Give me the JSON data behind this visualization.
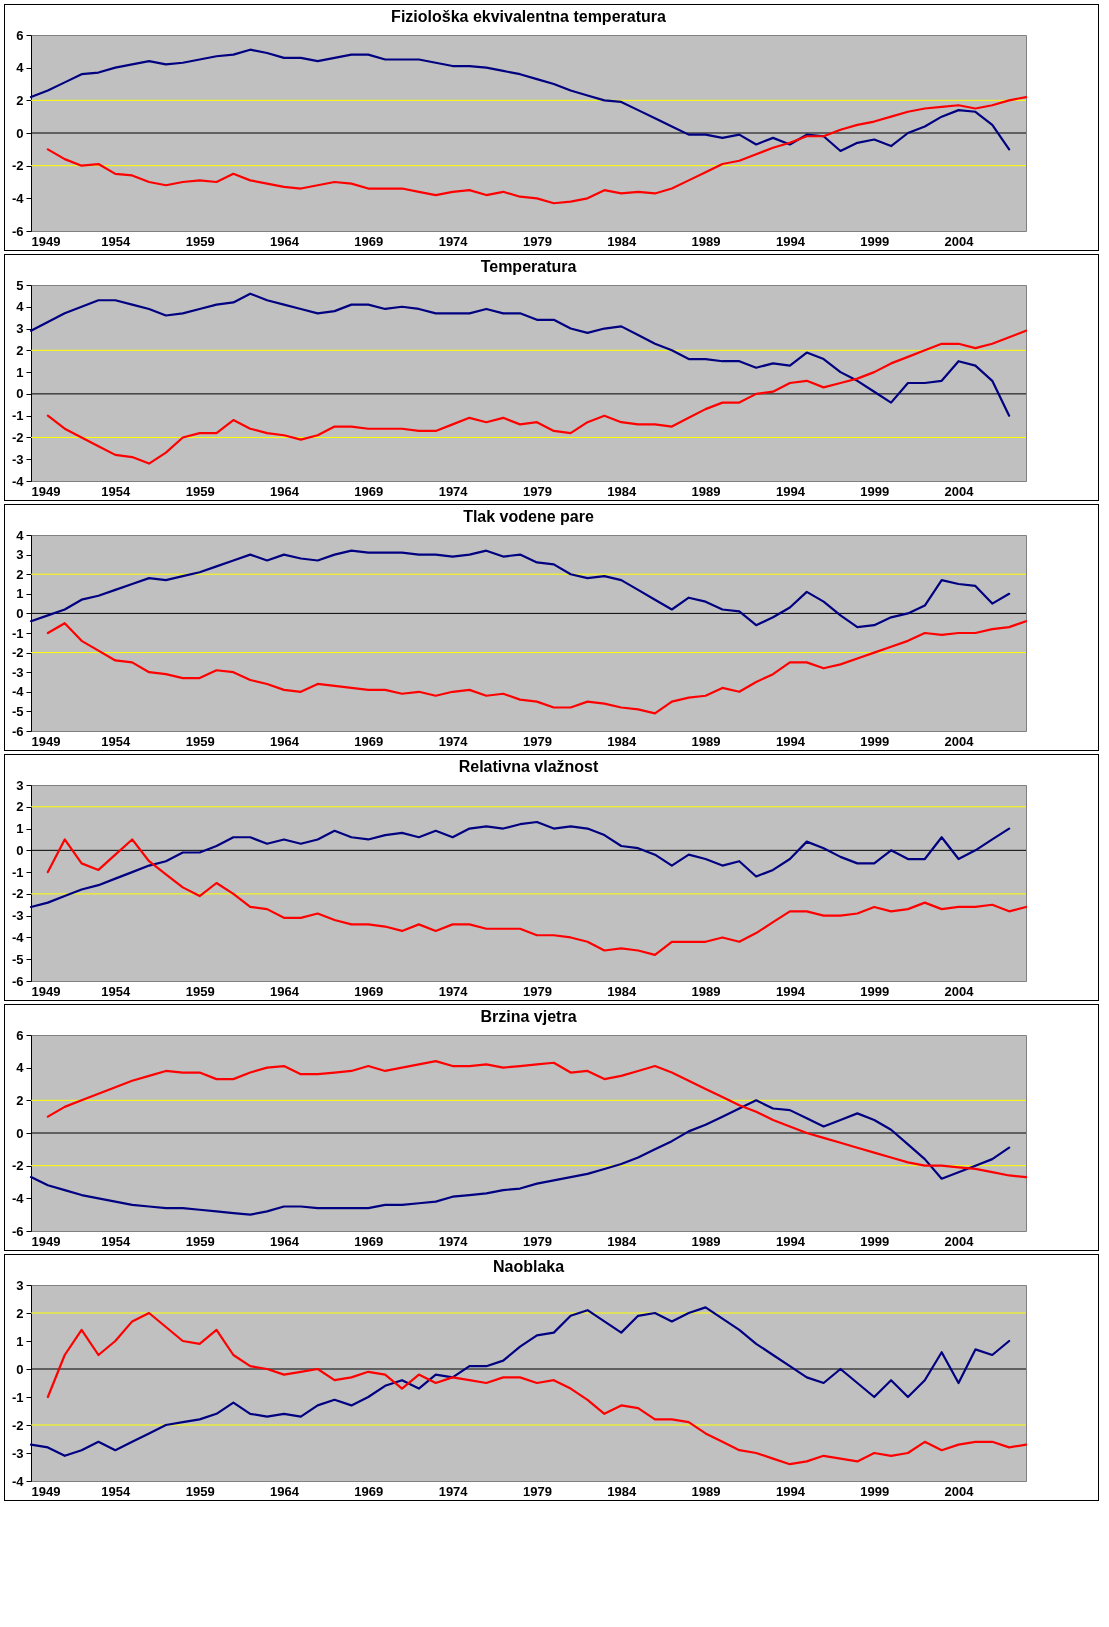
{
  "chart_data": [
    {
      "type": "line",
      "title": "Fiziološka ekvivalentna temperatura",
      "x": [
        1949,
        1950,
        1951,
        1952,
        1953,
        1954,
        1955,
        1956,
        1957,
        1958,
        1959,
        1960,
        1961,
        1962,
        1963,
        1964,
        1965,
        1966,
        1967,
        1968,
        1969,
        1970,
        1971,
        1972,
        1973,
        1974,
        1975,
        1976,
        1977,
        1978,
        1979,
        1980,
        1981,
        1982,
        1983,
        1984,
        1985,
        1986,
        1987,
        1988,
        1989,
        1990,
        1991,
        1992,
        1993,
        1994,
        1995,
        1996,
        1997,
        1998,
        1999,
        2000,
        2001,
        2002,
        2003,
        2004,
        2005,
        2006,
        2007,
        2008
      ],
      "xlim": [
        1949,
        2008
      ],
      "xticks": [
        1949,
        1954,
        1959,
        1964,
        1969,
        1974,
        1979,
        1984,
        1989,
        1994,
        1999,
        2004
      ],
      "ylim": [
        -6,
        6
      ],
      "yticks": [
        -6,
        -4,
        -2,
        0,
        2,
        4,
        6
      ],
      "ref_lines": [
        {
          "axis": "y",
          "value": 2,
          "color": "#ffff00"
        },
        {
          "axis": "y",
          "value": -2,
          "color": "#ffff00"
        },
        {
          "axis": "y",
          "value": 0,
          "color": "#000000"
        }
      ],
      "series": [
        {
          "color": "#000080",
          "values": [
            2.2,
            2.6,
            3.1,
            3.6,
            3.7,
            4.0,
            4.2,
            4.4,
            4.2,
            4.3,
            4.5,
            4.7,
            4.8,
            5.1,
            4.9,
            4.6,
            4.6,
            4.4,
            4.6,
            4.8,
            4.8,
            4.5,
            4.5,
            4.5,
            4.3,
            4.1,
            4.1,
            4.0,
            3.8,
            3.6,
            3.3,
            3.0,
            2.6,
            2.3,
            2.0,
            1.9,
            1.4,
            0.9,
            0.4,
            -0.1,
            -0.1,
            -0.3,
            -0.1,
            -0.7,
            -0.3,
            -0.7,
            -0.1,
            -0.2,
            -1.1,
            -0.6,
            -0.4,
            -0.8,
            0.0,
            0.4,
            1.0,
            1.4,
            1.3,
            0.5,
            -1.0,
            null
          ]
        },
        {
          "color": "#ff0000",
          "values": [
            null,
            -1.0,
            -1.6,
            -2.0,
            -1.9,
            -2.5,
            -2.6,
            -3.0,
            -3.2,
            -3.0,
            -2.9,
            -3.0,
            -2.5,
            -2.9,
            -3.1,
            -3.3,
            -3.4,
            -3.2,
            -3.0,
            -3.1,
            -3.4,
            -3.4,
            -3.4,
            -3.6,
            -3.8,
            -3.6,
            -3.5,
            -3.8,
            -3.6,
            -3.9,
            -4.0,
            -4.3,
            -4.2,
            -4.0,
            -3.5,
            -3.7,
            -3.6,
            -3.7,
            -3.4,
            -2.9,
            -2.4,
            -1.9,
            -1.7,
            -1.3,
            -0.9,
            -0.6,
            -0.2,
            -0.2,
            0.2,
            0.5,
            0.7,
            1.0,
            1.3,
            1.5,
            1.6,
            1.7,
            1.5,
            1.7,
            2.0,
            2.2
          ]
        }
      ]
    },
    {
      "type": "line",
      "title": "Temperatura",
      "x": [
        1949,
        1950,
        1951,
        1952,
        1953,
        1954,
        1955,
        1956,
        1957,
        1958,
        1959,
        1960,
        1961,
        1962,
        1963,
        1964,
        1965,
        1966,
        1967,
        1968,
        1969,
        1970,
        1971,
        1972,
        1973,
        1974,
        1975,
        1976,
        1977,
        1978,
        1979,
        1980,
        1981,
        1982,
        1983,
        1984,
        1985,
        1986,
        1987,
        1988,
        1989,
        1990,
        1991,
        1992,
        1993,
        1994,
        1995,
        1996,
        1997,
        1998,
        1999,
        2000,
        2001,
        2002,
        2003,
        2004,
        2005,
        2006,
        2007,
        2008
      ],
      "xlim": [
        1949,
        2008
      ],
      "xticks": [
        1949,
        1954,
        1959,
        1964,
        1969,
        1974,
        1979,
        1984,
        1989,
        1994,
        1999,
        2004
      ],
      "ylim": [
        -4,
        5
      ],
      "yticks": [
        -4,
        -3,
        -2,
        -1,
        0,
        1,
        2,
        3,
        4,
        5
      ],
      "ref_lines": [
        {
          "axis": "y",
          "value": 2,
          "color": "#ffff00"
        },
        {
          "axis": "y",
          "value": -2,
          "color": "#ffff00"
        },
        {
          "axis": "y",
          "value": 0,
          "color": "#000000"
        }
      ],
      "series": [
        {
          "color": "#000080",
          "values": [
            2.9,
            3.3,
            3.7,
            4.0,
            4.3,
            4.3,
            4.1,
            3.9,
            3.6,
            3.7,
            3.9,
            4.1,
            4.2,
            4.6,
            4.3,
            4.1,
            3.9,
            3.7,
            3.8,
            4.1,
            4.1,
            3.9,
            4.0,
            3.9,
            3.7,
            3.7,
            3.7,
            3.9,
            3.7,
            3.7,
            3.4,
            3.4,
            3.0,
            2.8,
            3.0,
            3.1,
            2.7,
            2.3,
            2.0,
            1.6,
            1.6,
            1.5,
            1.5,
            1.2,
            1.4,
            1.3,
            1.9,
            1.6,
            1.0,
            0.6,
            0.1,
            -0.4,
            0.5,
            0.5,
            0.6,
            1.5,
            1.3,
            0.6,
            -1.0,
            null
          ]
        },
        {
          "color": "#ff0000",
          "values": [
            null,
            -1.0,
            -1.6,
            -2.0,
            -2.4,
            -2.8,
            -2.9,
            -3.2,
            -2.7,
            -2.0,
            -1.8,
            -1.8,
            -1.2,
            -1.6,
            -1.8,
            -1.9,
            -2.1,
            -1.9,
            -1.5,
            -1.5,
            -1.6,
            -1.6,
            -1.6,
            -1.7,
            -1.7,
            -1.4,
            -1.1,
            -1.3,
            -1.1,
            -1.4,
            -1.3,
            -1.7,
            -1.8,
            -1.3,
            -1.0,
            -1.3,
            -1.4,
            -1.4,
            -1.5,
            -1.1,
            -0.7,
            -0.4,
            -0.4,
            0.0,
            0.1,
            0.5,
            0.6,
            0.3,
            0.5,
            0.7,
            1.0,
            1.4,
            1.7,
            2.0,
            2.3,
            2.3,
            2.1,
            2.3,
            2.6,
            2.9
          ]
        }
      ]
    },
    {
      "type": "line",
      "title": "Tlak vodene pare",
      "x": [
        1949,
        1950,
        1951,
        1952,
        1953,
        1954,
        1955,
        1956,
        1957,
        1958,
        1959,
        1960,
        1961,
        1962,
        1963,
        1964,
        1965,
        1966,
        1967,
        1968,
        1969,
        1970,
        1971,
        1972,
        1973,
        1974,
        1975,
        1976,
        1977,
        1978,
        1979,
        1980,
        1981,
        1982,
        1983,
        1984,
        1985,
        1986,
        1987,
        1988,
        1989,
        1990,
        1991,
        1992,
        1993,
        1994,
        1995,
        1996,
        1997,
        1998,
        1999,
        2000,
        2001,
        2002,
        2003,
        2004,
        2005,
        2006,
        2007,
        2008
      ],
      "xlim": [
        1949,
        2008
      ],
      "xticks": [
        1949,
        1954,
        1959,
        1964,
        1969,
        1974,
        1979,
        1984,
        1989,
        1994,
        1999,
        2004
      ],
      "ylim": [
        -6,
        4
      ],
      "yticks": [
        -6,
        -5,
        -4,
        -3,
        -2,
        -1,
        0,
        1,
        2,
        3,
        4
      ],
      "ref_lines": [
        {
          "axis": "y",
          "value": 2,
          "color": "#ffff00"
        },
        {
          "axis": "y",
          "value": -2,
          "color": "#ffff00"
        },
        {
          "axis": "y",
          "value": 0,
          "color": "#000000"
        }
      ],
      "series": [
        {
          "color": "#000080",
          "values": [
            -0.4,
            -0.1,
            0.2,
            0.7,
            0.9,
            1.2,
            1.5,
            1.8,
            1.7,
            1.9,
            2.1,
            2.4,
            2.7,
            3.0,
            2.7,
            3.0,
            2.8,
            2.7,
            3.0,
            3.2,
            3.1,
            3.1,
            3.1,
            3.0,
            3.0,
            2.9,
            3.0,
            3.2,
            2.9,
            3.0,
            2.6,
            2.5,
            2.0,
            1.8,
            1.9,
            1.7,
            1.2,
            0.7,
            0.2,
            0.8,
            0.6,
            0.2,
            0.1,
            -0.6,
            -0.2,
            0.3,
            1.1,
            0.6,
            -0.1,
            -0.7,
            -0.6,
            -0.2,
            0.0,
            0.4,
            1.7,
            1.5,
            1.4,
            0.5,
            1.0,
            null
          ]
        },
        {
          "color": "#ff0000",
          "values": [
            null,
            -1.0,
            -0.5,
            -1.4,
            -1.9,
            -2.4,
            -2.5,
            -3.0,
            -3.1,
            -3.3,
            -3.3,
            -2.9,
            -3.0,
            -3.4,
            -3.6,
            -3.9,
            -4.0,
            -3.6,
            -3.7,
            -3.8,
            -3.9,
            -3.9,
            -4.1,
            -4.0,
            -4.2,
            -4.0,
            -3.9,
            -4.2,
            -4.1,
            -4.4,
            -4.5,
            -4.8,
            -4.8,
            -4.5,
            -4.6,
            -4.8,
            -4.9,
            -5.1,
            -4.5,
            -4.3,
            -4.2,
            -3.8,
            -4.0,
            -3.5,
            -3.1,
            -2.5,
            -2.5,
            -2.8,
            -2.6,
            -2.3,
            -2.0,
            -1.7,
            -1.4,
            -1.0,
            -1.1,
            -1.0,
            -1.0,
            -0.8,
            -0.7,
            -0.4
          ]
        }
      ]
    },
    {
      "type": "line",
      "title": "Relativna vlažnost",
      "x": [
        1949,
        1950,
        1951,
        1952,
        1953,
        1954,
        1955,
        1956,
        1957,
        1958,
        1959,
        1960,
        1961,
        1962,
        1963,
        1964,
        1965,
        1966,
        1967,
        1968,
        1969,
        1970,
        1971,
        1972,
        1973,
        1974,
        1975,
        1976,
        1977,
        1978,
        1979,
        1980,
        1981,
        1982,
        1983,
        1984,
        1985,
        1986,
        1987,
        1988,
        1989,
        1990,
        1991,
        1992,
        1993,
        1994,
        1995,
        1996,
        1997,
        1998,
        1999,
        2000,
        2001,
        2002,
        2003,
        2004,
        2005,
        2006,
        2007,
        2008
      ],
      "xlim": [
        1949,
        2008
      ],
      "xticks": [
        1949,
        1954,
        1959,
        1964,
        1969,
        1974,
        1979,
        1984,
        1989,
        1994,
        1999,
        2004
      ],
      "ylim": [
        -6,
        3
      ],
      "yticks": [
        -6,
        -5,
        -4,
        -3,
        -2,
        -1,
        0,
        1,
        2,
        3
      ],
      "ref_lines": [
        {
          "axis": "y",
          "value": 2,
          "color": "#ffff00"
        },
        {
          "axis": "y",
          "value": -2,
          "color": "#ffff00"
        },
        {
          "axis": "y",
          "value": 0,
          "color": "#000000"
        }
      ],
      "series": [
        {
          "color": "#000080",
          "values": [
            -2.6,
            -2.4,
            -2.1,
            -1.8,
            -1.6,
            -1.3,
            -1.0,
            -0.7,
            -0.5,
            -0.1,
            -0.1,
            0.2,
            0.6,
            0.6,
            0.3,
            0.5,
            0.3,
            0.5,
            0.9,
            0.6,
            0.5,
            0.7,
            0.8,
            0.6,
            0.9,
            0.6,
            1.0,
            1.1,
            1.0,
            1.2,
            1.3,
            1.0,
            1.1,
            1.0,
            0.7,
            0.2,
            0.1,
            -0.2,
            -0.7,
            -0.2,
            -0.4,
            -0.7,
            -0.5,
            -1.2,
            -0.9,
            -0.4,
            0.4,
            0.1,
            -0.3,
            -0.6,
            -0.6,
            0.0,
            -0.4,
            -0.4,
            0.6,
            -0.4,
            0.0,
            0.5,
            1.0,
            null
          ]
        },
        {
          "color": "#ff0000",
          "values": [
            null,
            -1.0,
            0.5,
            -0.6,
            -0.9,
            -0.2,
            0.5,
            -0.5,
            -1.1,
            -1.7,
            -2.1,
            -1.5,
            -2.0,
            -2.6,
            -2.7,
            -3.1,
            -3.1,
            -2.9,
            -3.2,
            -3.4,
            -3.4,
            -3.5,
            -3.7,
            -3.4,
            -3.7,
            -3.4,
            -3.4,
            -3.6,
            -3.6,
            -3.6,
            -3.9,
            -3.9,
            -4.0,
            -4.2,
            -4.6,
            -4.5,
            -4.6,
            -4.8,
            -4.2,
            -4.2,
            -4.2,
            -4.0,
            -4.2,
            -3.8,
            -3.3,
            -2.8,
            -2.8,
            -3.0,
            -3.0,
            -2.9,
            -2.6,
            -2.8,
            -2.7,
            -2.4,
            -2.7,
            -2.6,
            -2.6,
            -2.5,
            -2.8,
            -2.6
          ]
        }
      ]
    },
    {
      "type": "line",
      "title": "Brzina vjetra",
      "x": [
        1949,
        1950,
        1951,
        1952,
        1953,
        1954,
        1955,
        1956,
        1957,
        1958,
        1959,
        1960,
        1961,
        1962,
        1963,
        1964,
        1965,
        1966,
        1967,
        1968,
        1969,
        1970,
        1971,
        1972,
        1973,
        1974,
        1975,
        1976,
        1977,
        1978,
        1979,
        1980,
        1981,
        1982,
        1983,
        1984,
        1985,
        1986,
        1987,
        1988,
        1989,
        1990,
        1991,
        1992,
        1993,
        1994,
        1995,
        1996,
        1997,
        1998,
        1999,
        2000,
        2001,
        2002,
        2003,
        2004,
        2005,
        2006,
        2007,
        2008
      ],
      "xlim": [
        1949,
        2008
      ],
      "xticks": [
        1949,
        1954,
        1959,
        1964,
        1969,
        1974,
        1979,
        1984,
        1989,
        1994,
        1999,
        2004
      ],
      "ylim": [
        -6,
        6
      ],
      "yticks": [
        -6,
        -4,
        -2,
        0,
        2,
        4,
        6
      ],
      "ref_lines": [
        {
          "axis": "y",
          "value": 2,
          "color": "#ffff00"
        },
        {
          "axis": "y",
          "value": -2,
          "color": "#ffff00"
        },
        {
          "axis": "y",
          "value": 0,
          "color": "#000000"
        }
      ],
      "series": [
        {
          "color": "#000080",
          "values": [
            -2.7,
            -3.2,
            -3.5,
            -3.8,
            -4.0,
            -4.2,
            -4.4,
            -4.5,
            -4.6,
            -4.6,
            -4.7,
            -4.8,
            -4.9,
            -5.0,
            -4.8,
            -4.5,
            -4.5,
            -4.6,
            -4.6,
            -4.6,
            -4.6,
            -4.4,
            -4.4,
            -4.3,
            -4.2,
            -3.9,
            -3.8,
            -3.7,
            -3.5,
            -3.4,
            -3.1,
            -2.9,
            -2.7,
            -2.5,
            -2.2,
            -1.9,
            -1.5,
            -1.0,
            -0.5,
            0.1,
            0.5,
            1.0,
            1.5,
            2.0,
            1.5,
            1.4,
            0.9,
            0.4,
            0.8,
            1.2,
            0.8,
            0.2,
            -0.7,
            -1.6,
            -2.8,
            -2.4,
            -2.0,
            -1.6,
            -0.9,
            null
          ]
        },
        {
          "color": "#ff0000",
          "values": [
            null,
            1.0,
            1.6,
            2.0,
            2.4,
            2.8,
            3.2,
            3.5,
            3.8,
            3.7,
            3.7,
            3.3,
            3.3,
            3.7,
            4.0,
            4.1,
            3.6,
            3.6,
            3.7,
            3.8,
            4.1,
            3.8,
            4.0,
            4.2,
            4.4,
            4.1,
            4.1,
            4.2,
            4.0,
            4.1,
            4.2,
            4.3,
            3.7,
            3.8,
            3.3,
            3.5,
            3.8,
            4.1,
            3.7,
            3.2,
            2.7,
            2.2,
            1.7,
            1.3,
            0.8,
            0.4,
            0.0,
            -0.3,
            -0.6,
            -0.9,
            -1.2,
            -1.5,
            -1.8,
            -2.0,
            -2.0,
            -2.1,
            -2.2,
            -2.4,
            -2.6,
            -2.7
          ]
        }
      ]
    },
    {
      "type": "line",
      "title": "Naoblaka",
      "x": [
        1949,
        1950,
        1951,
        1952,
        1953,
        1954,
        1955,
        1956,
        1957,
        1958,
        1959,
        1960,
        1961,
        1962,
        1963,
        1964,
        1965,
        1966,
        1967,
        1968,
        1969,
        1970,
        1971,
        1972,
        1973,
        1974,
        1975,
        1976,
        1977,
        1978,
        1979,
        1980,
        1981,
        1982,
        1983,
        1984,
        1985,
        1986,
        1987,
        1988,
        1989,
        1990,
        1991,
        1992,
        1993,
        1994,
        1995,
        1996,
        1997,
        1998,
        1999,
        2000,
        2001,
        2002,
        2003,
        2004,
        2005,
        2006,
        2007,
        2008
      ],
      "xlim": [
        1949,
        2008
      ],
      "xticks": [
        1949,
        1954,
        1959,
        1964,
        1969,
        1974,
        1979,
        1984,
        1989,
        1994,
        1999,
        2004
      ],
      "ylim": [
        -4,
        3
      ],
      "yticks": [
        -4,
        -3,
        -2,
        -1,
        0,
        1,
        2,
        3
      ],
      "ref_lines": [
        {
          "axis": "y",
          "value": 2,
          "color": "#ffff00"
        },
        {
          "axis": "y",
          "value": -2,
          "color": "#ffff00"
        },
        {
          "axis": "y",
          "value": 0,
          "color": "#000000"
        }
      ],
      "series": [
        {
          "color": "#000080",
          "values": [
            -2.7,
            -2.8,
            -3.1,
            -2.9,
            -2.6,
            -2.9,
            -2.6,
            -2.3,
            -2.0,
            -1.9,
            -1.8,
            -1.6,
            -1.2,
            -1.6,
            -1.7,
            -1.6,
            -1.7,
            -1.3,
            -1.1,
            -1.3,
            -1.0,
            -0.6,
            -0.4,
            -0.7,
            -0.2,
            -0.3,
            0.1,
            0.1,
            0.3,
            0.8,
            1.2,
            1.3,
            1.9,
            2.1,
            1.7,
            1.3,
            1.9,
            2.0,
            1.7,
            2.0,
            2.2,
            1.8,
            1.4,
            0.9,
            0.5,
            0.1,
            -0.3,
            -0.5,
            0.0,
            -0.5,
            -1.0,
            -0.4,
            -1.0,
            -0.4,
            0.6,
            -0.5,
            0.7,
            0.5,
            1.0,
            null
          ]
        },
        {
          "color": "#ff0000",
          "values": [
            null,
            -1.0,
            0.5,
            1.4,
            0.5,
            1.0,
            1.7,
            2.0,
            1.5,
            1.0,
            0.9,
            1.4,
            0.5,
            0.1,
            0.0,
            -0.2,
            -0.1,
            0.0,
            -0.4,
            -0.3,
            -0.1,
            -0.2,
            -0.7,
            -0.2,
            -0.5,
            -0.3,
            -0.4,
            -0.5,
            -0.3,
            -0.3,
            -0.5,
            -0.4,
            -0.7,
            -1.1,
            -1.6,
            -1.3,
            -1.4,
            -1.8,
            -1.8,
            -1.9,
            -2.3,
            -2.6,
            -2.9,
            -3.0,
            -3.2,
            -3.4,
            -3.3,
            -3.1,
            -3.2,
            -3.3,
            -3.0,
            -3.1,
            -3.0,
            -2.6,
            -2.9,
            -2.7,
            -2.6,
            -2.6,
            -2.8,
            -2.7
          ]
        }
      ]
    }
  ]
}
